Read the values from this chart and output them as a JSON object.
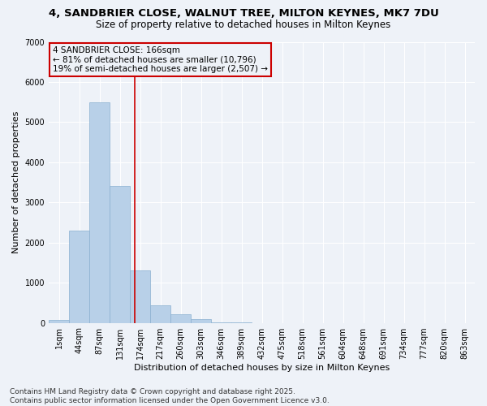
{
  "title_line1": "4, SANDBRIER CLOSE, WALNUT TREE, MILTON KEYNES, MK7 7DU",
  "title_line2": "Size of property relative to detached houses in Milton Keynes",
  "xlabel": "Distribution of detached houses by size in Milton Keynes",
  "ylabel": "Number of detached properties",
  "bar_labels": [
    "1sqm",
    "44sqm",
    "87sqm",
    "131sqm",
    "174sqm",
    "217sqm",
    "260sqm",
    "303sqm",
    "346sqm",
    "389sqm",
    "432sqm",
    "475sqm",
    "518sqm",
    "561sqm",
    "604sqm",
    "648sqm",
    "691sqm",
    "734sqm",
    "777sqm",
    "820sqm",
    "863sqm"
  ],
  "bar_values": [
    75,
    2300,
    5500,
    3400,
    1300,
    430,
    220,
    90,
    10,
    2,
    0,
    0,
    0,
    0,
    0,
    0,
    0,
    0,
    0,
    0,
    0
  ],
  "bar_color": "#b8d0e8",
  "bar_edge_color": "#8ab0d0",
  "vline_color": "#cc0000",
  "vline_x_index": 3.72,
  "annotation_line1": "4 SANDBRIER CLOSE: 166sqm",
  "annotation_line2": "← 81% of detached houses are smaller (10,796)",
  "annotation_line3": "19% of semi-detached houses are larger (2,507) →",
  "annotation_color": "#cc0000",
  "ylim": [
    0,
    7000
  ],
  "yticks": [
    0,
    1000,
    2000,
    3000,
    4000,
    5000,
    6000,
    7000
  ],
  "bg_color": "#eef2f8",
  "grid_color": "#ffffff",
  "footer_text": "Contains HM Land Registry data © Crown copyright and database right 2025.\nContains public sector information licensed under the Open Government Licence v3.0.",
  "title_fontsize": 9.5,
  "subtitle_fontsize": 8.5,
  "axis_label_fontsize": 8,
  "tick_fontsize": 7,
  "annotation_fontsize": 7.5,
  "footer_fontsize": 6.5
}
